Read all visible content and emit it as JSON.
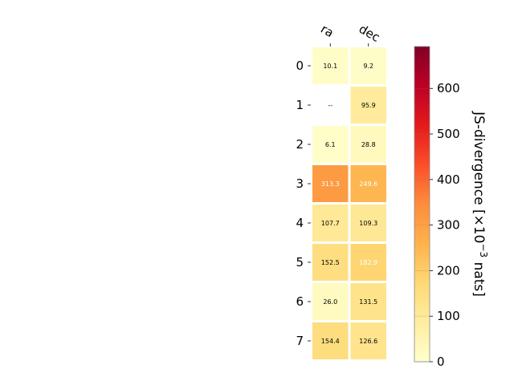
{
  "chart_data": {
    "type": "heatmap",
    "columns": [
      "ra",
      "dec"
    ],
    "rows": [
      "0",
      "1",
      "2",
      "3",
      "4",
      "5",
      "6",
      "7"
    ],
    "values": [
      [
        10.1,
        9.2
      ],
      [
        null,
        95.9
      ],
      [
        6.1,
        28.8
      ],
      [
        313.3,
        249.6
      ],
      [
        107.7,
        109.3
      ],
      [
        152.5,
        182.9
      ],
      [
        26.0,
        131.5
      ],
      [
        154.4,
        126.6
      ]
    ],
    "cell_labels": [
      [
        "10.1",
        "9.2"
      ],
      [
        "--",
        "95.9"
      ],
      [
        "6.1",
        "28.8"
      ],
      [
        "313.3",
        "249.6"
      ],
      [
        "107.7",
        "109.3"
      ],
      [
        "152.5",
        "182.9"
      ],
      [
        "26.0",
        "131.5"
      ],
      [
        "154.4",
        "126.6"
      ]
    ],
    "colorbar": {
      "label": "JS-divergence [×10",
      "label_exponent": "−3",
      "label_suffix": " nats]",
      "vmin": 0,
      "vmax": 692,
      "ticks": [
        0,
        100,
        200,
        300,
        400,
        500,
        600
      ],
      "tick_labels": [
        "0",
        "100",
        "200",
        "300",
        "400",
        "500",
        "600"
      ],
      "colormap": "YlOrRd"
    },
    "colors": {
      "colormap_stops": [
        "#ffffcc",
        "#ffeda0",
        "#fed976",
        "#feb24c",
        "#fd8d3c",
        "#fc4e2a",
        "#e31a1c",
        "#bd0026",
        "#800026"
      ],
      "label_dark": "#000000",
      "label_light": "#ffffff"
    }
  }
}
